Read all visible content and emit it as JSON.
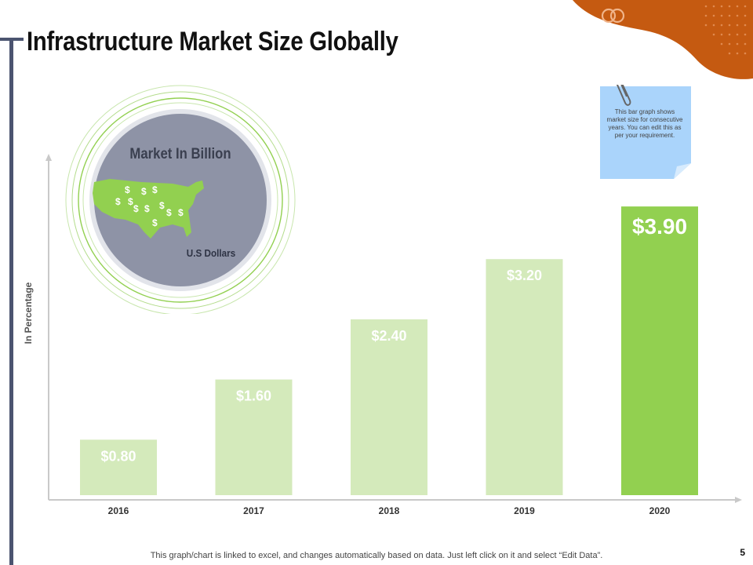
{
  "slide": {
    "title": "Infrastructure Market Size Globally",
    "page_number": "5",
    "footer": "This graph/chart is linked to excel, and changes automatically based on data. Just left click on it and select “Edit Data”."
  },
  "note": {
    "text": "This bar graph shows market size for consecutive years. You can edit this as per your requirement."
  },
  "badge": {
    "title": "Market In Billion",
    "subtitle": "U.S Dollars",
    "icon": "usa-map-dollar-icon"
  },
  "colors": {
    "bar_light": "#d4eabb",
    "bar_highlight": "#92d050",
    "accent_orange": "#c55a11",
    "rule": "#4b5470",
    "circle_fill": "#8e93a6"
  },
  "chart_data": {
    "type": "bar",
    "categories": [
      "2016",
      "2017",
      "2018",
      "2019",
      "2020"
    ],
    "values": [
      0.8,
      1.6,
      2.4,
      3.2,
      3.9
    ],
    "data_labels": [
      "$0.80",
      "$1.60",
      "$2.40",
      "$3.20",
      "$3.90"
    ],
    "highlight_index": 4,
    "ylabel": "In Percentage",
    "xlabel": "",
    "ylim": [
      0,
      4.6
    ],
    "grid": false
  }
}
